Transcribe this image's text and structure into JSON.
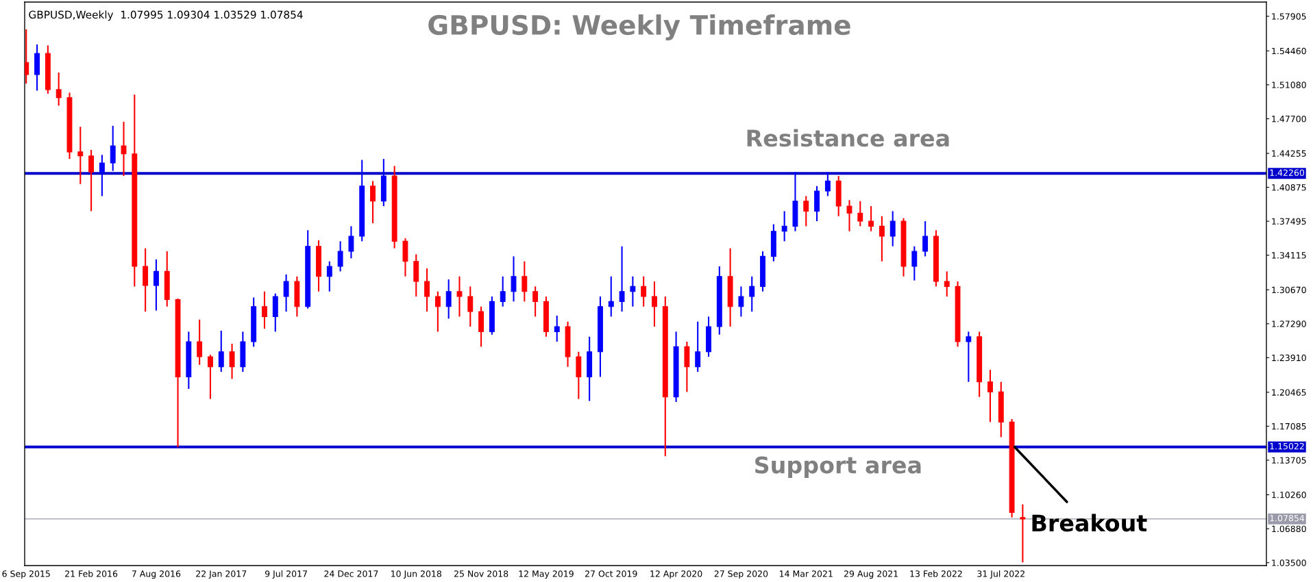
{
  "chart_data": {
    "type": "candlestick",
    "title": "GBPUSD: Weekly Timeframe",
    "annotations": [
      "GBPUSD,Weekly  1.07995 1.09304 1.03529 1.07854",
      "Resistance area",
      "Support area",
      {
        "text": "Breakout",
        "x": "2022-09-04",
        "y": 1.15022
      }
    ],
    "x": [
      "2015-09-06",
      "2015-10-04",
      "2015-11-01",
      "2015-11-29",
      "2015-12-27",
      "2016-01-24",
      "2016-02-21",
      "2016-03-20",
      "2016-04-17",
      "2016-05-15",
      "2016-06-12",
      "2016-07-10",
      "2016-08-07",
      "2016-09-04",
      "2016-10-02",
      "2016-10-30",
      "2016-11-27",
      "2016-12-25",
      "2017-01-22",
      "2017-02-19",
      "2017-03-19",
      "2017-04-16",
      "2017-05-14",
      "2017-06-11",
      "2017-07-09",
      "2017-08-06",
      "2017-09-03",
      "2017-10-01",
      "2017-10-29",
      "2017-11-26",
      "2017-12-24",
      "2018-01-21",
      "2018-02-18",
      "2018-03-18",
      "2018-04-15",
      "2018-05-13",
      "2018-06-10",
      "2018-07-08",
      "2018-08-05",
      "2018-09-02",
      "2018-09-30",
      "2018-10-28",
      "2018-11-25",
      "2018-12-23",
      "2019-01-20",
      "2019-02-17",
      "2019-03-17",
      "2019-04-14",
      "2019-05-12",
      "2019-06-09",
      "2019-07-07",
      "2019-08-04",
      "2019-09-01",
      "2019-09-29",
      "2019-10-27",
      "2019-11-24",
      "2019-12-22",
      "2020-01-19",
      "2020-02-16",
      "2020-03-15",
      "2020-04-12",
      "2020-05-10",
      "2020-06-07",
      "2020-07-05",
      "2020-08-02",
      "2020-08-30",
      "2020-09-27",
      "2020-10-25",
      "2020-11-22",
      "2020-12-20",
      "2021-01-17",
      "2021-02-14",
      "2021-03-14",
      "2021-04-11",
      "2021-05-09",
      "2021-06-06",
      "2021-07-04",
      "2021-08-01",
      "2021-08-29",
      "2021-09-26",
      "2021-10-24",
      "2021-11-21",
      "2021-12-19",
      "2022-01-16",
      "2022-02-13",
      "2022-03-13",
      "2022-04-10",
      "2022-05-08",
      "2022-06-05",
      "2022-07-03",
      "2022-07-31",
      "2022-08-28",
      "2022-09-25"
    ],
    "ohlc": [
      [
        1.533,
        1.566,
        1.512,
        1.521
      ],
      [
        1.521,
        1.551,
        1.505,
        1.542
      ],
      [
        1.542,
        1.55,
        1.502,
        1.506
      ],
      [
        1.506,
        1.523,
        1.49,
        1.498
      ],
      [
        1.498,
        1.503,
        1.437,
        1.444
      ],
      [
        1.444,
        1.469,
        1.412,
        1.44
      ],
      [
        1.44,
        1.446,
        1.385,
        1.424
      ],
      [
        1.424,
        1.441,
        1.4,
        1.433
      ],
      [
        1.433,
        1.47,
        1.425,
        1.45
      ],
      [
        1.45,
        1.474,
        1.42,
        1.442
      ],
      [
        1.442,
        1.501,
        1.31,
        1.33
      ],
      [
        1.33,
        1.348,
        1.285,
        1.311
      ],
      [
        1.311,
        1.337,
        1.286,
        1.325
      ],
      [
        1.325,
        1.345,
        1.29,
        1.297
      ],
      [
        1.297,
        1.298,
        1.15,
        1.22
      ],
      [
        1.22,
        1.265,
        1.208,
        1.255
      ],
      [
        1.255,
        1.277,
        1.232,
        1.24
      ],
      [
        1.24,
        1.242,
        1.198,
        1.23
      ],
      [
        1.23,
        1.266,
        1.225,
        1.245
      ],
      [
        1.245,
        1.253,
        1.218,
        1.23
      ],
      [
        1.23,
        1.265,
        1.225,
        1.255
      ],
      [
        1.255,
        1.299,
        1.25,
        1.29
      ],
      [
        1.29,
        1.305,
        1.268,
        1.28
      ],
      [
        1.28,
        1.303,
        1.265,
        1.3
      ],
      [
        1.3,
        1.322,
        1.285,
        1.315
      ],
      [
        1.315,
        1.32,
        1.28,
        1.29
      ],
      [
        1.29,
        1.366,
        1.288,
        1.35
      ],
      [
        1.35,
        1.356,
        1.305,
        1.32
      ],
      [
        1.32,
        1.335,
        1.305,
        1.33
      ],
      [
        1.33,
        1.355,
        1.325,
        1.345
      ],
      [
        1.345,
        1.37,
        1.338,
        1.36
      ],
      [
        1.36,
        1.436,
        1.355,
        1.41
      ],
      [
        1.41,
        1.415,
        1.373,
        1.395
      ],
      [
        1.395,
        1.437,
        1.39,
        1.42
      ],
      [
        1.42,
        1.43,
        1.348,
        1.355
      ],
      [
        1.355,
        1.358,
        1.32,
        1.335
      ],
      [
        1.335,
        1.342,
        1.3,
        1.315
      ],
      [
        1.315,
        1.328,
        1.285,
        1.3
      ],
      [
        1.3,
        1.305,
        1.265,
        1.29
      ],
      [
        1.29,
        1.317,
        1.278,
        1.305
      ],
      [
        1.305,
        1.32,
        1.28,
        1.3
      ],
      [
        1.3,
        1.31,
        1.27,
        1.285
      ],
      [
        1.285,
        1.29,
        1.25,
        1.265
      ],
      [
        1.265,
        1.3,
        1.262,
        1.295
      ],
      [
        1.295,
        1.32,
        1.29,
        1.305
      ],
      [
        1.305,
        1.34,
        1.295,
        1.32
      ],
      [
        1.32,
        1.335,
        1.295,
        1.305
      ],
      [
        1.305,
        1.31,
        1.28,
        1.295
      ],
      [
        1.295,
        1.3,
        1.26,
        1.265
      ],
      [
        1.265,
        1.281,
        1.255,
        1.27
      ],
      [
        1.27,
        1.275,
        1.23,
        1.24
      ],
      [
        1.24,
        1.245,
        1.198,
        1.22
      ],
      [
        1.22,
        1.26,
        1.196,
        1.245
      ],
      [
        1.245,
        1.3,
        1.22,
        1.29
      ],
      [
        1.29,
        1.32,
        1.28,
        1.295
      ],
      [
        1.295,
        1.35,
        1.285,
        1.305
      ],
      [
        1.305,
        1.32,
        1.29,
        1.31
      ],
      [
        1.31,
        1.32,
        1.29,
        1.3
      ],
      [
        1.3,
        1.315,
        1.27,
        1.29
      ],
      [
        1.29,
        1.3,
        1.141,
        1.2
      ],
      [
        1.2,
        1.265,
        1.195,
        1.25
      ],
      [
        1.25,
        1.255,
        1.205,
        1.23
      ],
      [
        1.23,
        1.275,
        1.225,
        1.245
      ],
      [
        1.245,
        1.28,
        1.24,
        1.27
      ],
      [
        1.27,
        1.33,
        1.262,
        1.32
      ],
      [
        1.32,
        1.348,
        1.27,
        1.29
      ],
      [
        1.29,
        1.31,
        1.28,
        1.3
      ],
      [
        1.3,
        1.32,
        1.285,
        1.31
      ],
      [
        1.31,
        1.345,
        1.305,
        1.34
      ],
      [
        1.34,
        1.372,
        1.335,
        1.365
      ],
      [
        1.365,
        1.385,
        1.355,
        1.37
      ],
      [
        1.37,
        1.424,
        1.365,
        1.395
      ],
      [
        1.395,
        1.4,
        1.37,
        1.385
      ],
      [
        1.385,
        1.41,
        1.375,
        1.405
      ],
      [
        1.405,
        1.424,
        1.4,
        1.415
      ],
      [
        1.415,
        1.42,
        1.38,
        1.39
      ],
      [
        1.39,
        1.396,
        1.365,
        1.383
      ],
      [
        1.383,
        1.395,
        1.37,
        1.375
      ],
      [
        1.375,
        1.39,
        1.365,
        1.37
      ],
      [
        1.37,
        1.38,
        1.335,
        1.36
      ],
      [
        1.36,
        1.385,
        1.35,
        1.375
      ],
      [
        1.375,
        1.378,
        1.32,
        1.33
      ],
      [
        1.33,
        1.35,
        1.316,
        1.345
      ],
      [
        1.345,
        1.375,
        1.34,
        1.36
      ],
      [
        1.36,
        1.366,
        1.31,
        1.315
      ],
      [
        1.315,
        1.325,
        1.3,
        1.31
      ],
      [
        1.31,
        1.315,
        1.25,
        1.255
      ],
      [
        1.255,
        1.265,
        1.215,
        1.26
      ],
      [
        1.26,
        1.265,
        1.2,
        1.215
      ],
      [
        1.215,
        1.227,
        1.175,
        1.205
      ],
      [
        1.205,
        1.215,
        1.16,
        1.175
      ],
      [
        1.175,
        1.178,
        1.08,
        1.085
      ],
      [
        1.07995,
        1.09304,
        1.03529,
        1.07854
      ]
    ],
    "colors": [
      "#ff0000",
      "#0000ff",
      "#ff0000",
      "#ff0000",
      "#ff0000",
      "#ff0000",
      "#ff0000",
      "#0000ff",
      "#0000ff",
      "#ff0000",
      "#ff0000",
      "#ff0000",
      "#0000ff",
      "#ff0000",
      "#ff0000",
      "#0000ff",
      "#ff0000",
      "#ff0000",
      "#0000ff",
      "#ff0000",
      "#0000ff",
      "#0000ff",
      "#ff0000",
      "#0000ff",
      "#0000ff",
      "#ff0000",
      "#0000ff",
      "#ff0000",
      "#0000ff",
      "#0000ff",
      "#0000ff",
      "#0000ff",
      "#ff0000",
      "#0000ff",
      "#ff0000",
      "#ff0000",
      "#ff0000",
      "#ff0000",
      "#ff0000",
      "#0000ff",
      "#ff0000",
      "#ff0000",
      "#ff0000",
      "#0000ff",
      "#0000ff",
      "#0000ff",
      "#ff0000",
      "#ff0000",
      "#ff0000",
      "#0000ff",
      "#ff0000",
      "#ff0000",
      "#0000ff",
      "#0000ff",
      "#0000ff",
      "#0000ff",
      "#0000ff",
      "#ff0000",
      "#ff0000",
      "#ff0000",
      "#0000ff",
      "#ff0000",
      "#0000ff",
      "#0000ff",
      "#0000ff",
      "#ff0000",
      "#0000ff",
      "#0000ff",
      "#0000ff",
      "#0000ff",
      "#0000ff",
      "#0000ff",
      "#ff0000",
      "#0000ff",
      "#0000ff",
      "#ff0000",
      "#ff0000",
      "#ff0000",
      "#ff0000",
      "#ff0000",
      "#0000ff",
      "#ff0000",
      "#0000ff",
      "#0000ff",
      "#ff0000",
      "#ff0000",
      "#ff0000",
      "#0000ff",
      "#ff0000",
      "#ff0000",
      "#ff0000",
      "#ff0000",
      "#ff0000"
    ],
    "xlim": [
      "2015-09-02",
      "2024-06-16"
    ],
    "xticks": [
      {
        "value": "2015-09-06",
        "label": "6 Sep 2015"
      },
      {
        "value": "2016-02-21",
        "label": "21 Feb 2016"
      },
      {
        "value": "2016-08-07",
        "label": "7 Aug 2016"
      },
      {
        "value": "2017-01-22",
        "label": "22 Jan 2017"
      },
      {
        "value": "2017-07-09",
        "label": "9 Jul 2017"
      },
      {
        "value": "2017-12-24",
        "label": "24 Dec 2017"
      },
      {
        "value": "2018-06-10",
        "label": "10 Jun 2018"
      },
      {
        "value": "2018-11-25",
        "label": "25 Nov 2018"
      },
      {
        "value": "2019-05-12",
        "label": "12 May 2019"
      },
      {
        "value": "2019-10-27",
        "label": "27 Oct 2019"
      },
      {
        "value": "2020-04-12",
        "label": "12 Apr 2020"
      },
      {
        "value": "2020-09-27",
        "label": "27 Sep 2020"
      },
      {
        "value": "2021-03-14",
        "label": "14 Mar 2021"
      },
      {
        "value": "2021-08-29",
        "label": "29 Aug 2021"
      },
      {
        "value": "2022-02-13",
        "label": "13 Feb 2022"
      },
      {
        "value": "2022-07-31",
        "label": "31 Jul 2022"
      }
    ],
    "ylim": [
      1.0321,
      1.5932
    ],
    "yticks": [
      {
        "value": 1.035,
        "label": "1.03500"
      },
      {
        "value": 1.0688,
        "label": "1.06880"
      },
      {
        "value": 1.1026,
        "label": "1.10260"
      },
      {
        "value": 1.13705,
        "label": "1.13705"
      },
      {
        "value": 1.17085,
        "label": "1.17085"
      },
      {
        "value": 1.20465,
        "label": "1.20465"
      },
      {
        "value": 1.2391,
        "label": "1.23910"
      },
      {
        "value": 1.2729,
        "label": "1.27290"
      },
      {
        "value": 1.3067,
        "label": "1.30670"
      },
      {
        "value": 1.34115,
        "label": "1.34115"
      },
      {
        "value": 1.37495,
        "label": "1.37495"
      },
      {
        "value": 1.40875,
        "label": "1.40875"
      },
      {
        "value": 1.44255,
        "label": "1.44255"
      },
      {
        "value": 1.477,
        "label": "1.47700"
      },
      {
        "value": 1.5108,
        "label": "1.51080"
      },
      {
        "value": 1.5446,
        "label": "1.54460"
      },
      {
        "value": 1.57905,
        "label": "1.57905"
      }
    ],
    "ref_lines": [
      {
        "axis": "y",
        "value": 1.4226,
        "label": "1.42260",
        "color": "#0000cc"
      },
      {
        "axis": "y",
        "value": 1.15022,
        "label": "1.15022",
        "color": "#0000cc"
      },
      {
        "axis": "y",
        "value": 1.07854,
        "label": "1.07854",
        "color": "#9a9aaa"
      }
    ],
    "grid": false
  }
}
